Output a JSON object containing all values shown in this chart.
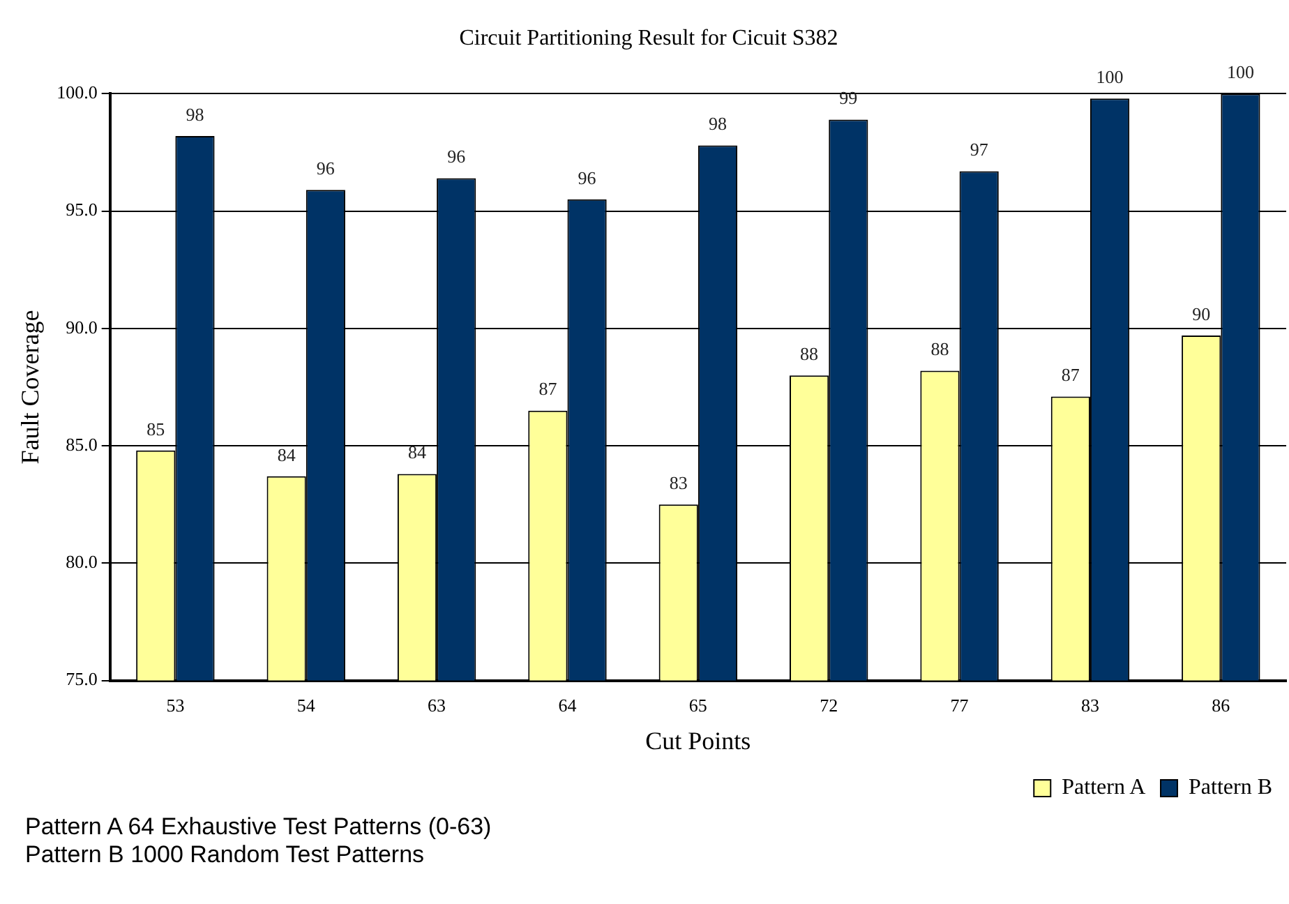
{
  "chart_data": {
    "type": "bar",
    "title": "Circuit Partitioning Result for Cicuit S382",
    "xlabel": "Cut Points",
    "ylabel": "Fault Coverage",
    "categories": [
      "53",
      "54",
      "63",
      "64",
      "65",
      "72",
      "77",
      "83",
      "86"
    ],
    "series": [
      {
        "name": "Pattern A",
        "color": "#ffff99",
        "values": [
          84.8,
          83.7,
          83.8,
          86.5,
          82.5,
          88.0,
          88.2,
          87.1,
          89.7
        ],
        "value_labels": [
          "85",
          "84",
          "84",
          "87",
          "83",
          "88",
          "88",
          "87",
          "90"
        ]
      },
      {
        "name": "Pattern B",
        "color": "#003366",
        "values": [
          98.2,
          95.9,
          96.4,
          95.5,
          97.8,
          98.9,
          96.7,
          99.8,
          100.0
        ],
        "value_labels": [
          "98",
          "96",
          "96",
          "96",
          "98",
          "99",
          "97",
          "100",
          "100"
        ]
      }
    ],
    "ylim": [
      75,
      100
    ],
    "yticks": [
      {
        "value": 75,
        "label": "75.0"
      },
      {
        "value": 80,
        "label": "80.0"
      },
      {
        "value": 85,
        "label": "85.0"
      },
      {
        "value": 90,
        "label": "90.0"
      },
      {
        "value": 95,
        "label": "95.0"
      },
      {
        "value": 100,
        "label": "100.0"
      }
    ],
    "grid": "y",
    "legend": "bottom right",
    "annotations": [
      "Pattern A  64 Exhaustive Test Patterns (0-63)",
      "Pattern B  1000 Random Test Patterns"
    ]
  }
}
